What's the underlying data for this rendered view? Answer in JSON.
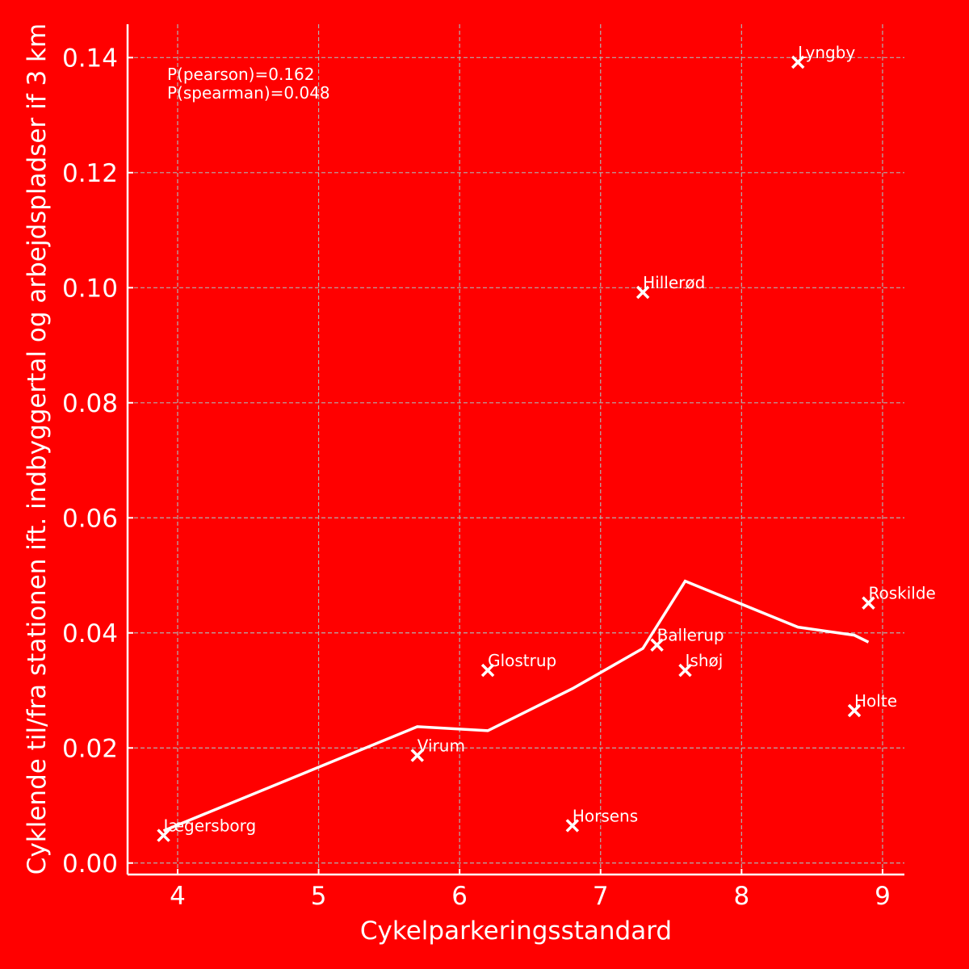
{
  "chart_data": {
    "type": "scatter",
    "title": "",
    "xlabel": "Cykelparkeringsstandard",
    "ylabel": "Cyklende til/fra stationen ift. indbyggertal og arbejdspladser if 3 km",
    "xlim": [
      3.645,
      9.155
    ],
    "ylim": [
      -0.002,
      0.1458
    ],
    "grid": true,
    "x_ticks": [
      4,
      5,
      6,
      7,
      8,
      9
    ],
    "x_tick_labels": [
      "4",
      "5",
      "6",
      "7",
      "8",
      "9"
    ],
    "y_ticks": [
      0,
      0.02,
      0.04,
      0.06,
      0.08,
      0.1,
      0.12,
      0.14
    ],
    "y_tick_labels": [
      "0.00",
      "0.02",
      "0.04",
      "0.06",
      "0.08",
      "0.10",
      "0.12",
      "0.14"
    ],
    "annotations": [
      "P(pearson)=0.162",
      "P(spearman)=0.048"
    ],
    "points": [
      {
        "label": "Jægersborg",
        "x": 3.9,
        "y": 0.0048
      },
      {
        "label": "Virum",
        "x": 5.7,
        "y": 0.0187
      },
      {
        "label": "Glostrup",
        "x": 6.2,
        "y": 0.0335
      },
      {
        "label": "Horsens",
        "x": 6.8,
        "y": 0.0065
      },
      {
        "label": "Hillerød",
        "x": 7.3,
        "y": 0.0992
      },
      {
        "label": "Ballerup",
        "x": 7.4,
        "y": 0.0379
      },
      {
        "label": "Ishøj",
        "x": 7.6,
        "y": 0.0335
      },
      {
        "label": "Lyngby",
        "x": 8.4,
        "y": 0.1392
      },
      {
        "label": "Holte",
        "x": 8.8,
        "y": 0.0265
      },
      {
        "label": "Roskilde",
        "x": 8.9,
        "y": 0.0452
      }
    ],
    "trend_line": {
      "x": [
        3.9,
        5.7,
        6.2,
        6.8,
        7.3,
        7.6,
        8.4,
        8.8,
        8.9
      ],
      "y": [
        0.0056,
        0.0237,
        0.023,
        0.0303,
        0.0373,
        0.049,
        0.041,
        0.0396,
        0.0384
      ]
    },
    "colors": {
      "background": "#ff0000",
      "foreground": "#ffffff",
      "grid": "#b0b0b0"
    }
  }
}
